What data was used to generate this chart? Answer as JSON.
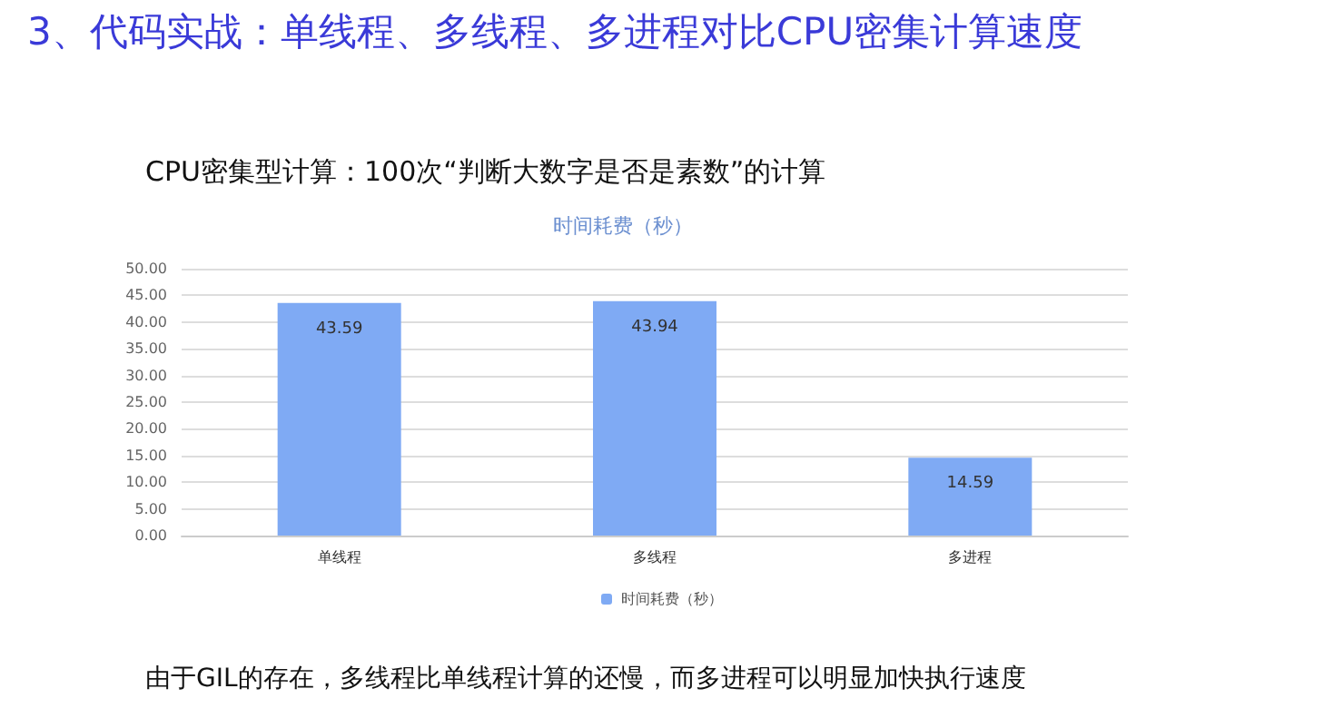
{
  "chart_data": {
    "type": "bar",
    "title": "3、代码实战：单线程、多线程、多进程对比CPU密集计算速度",
    "subtitle": "CPU密集型计算：100次“判断大数字是否是素数”的计算",
    "legend_title": null,
    "categories": [
      "单线程",
      "多线程",
      "多进程"
    ],
    "series": [
      {
        "name": "时间耗费（秒）",
        "color": "#7faaf4",
        "values": [
          43.59,
          43.94,
          14.59
        ]
      }
    ],
    "ylabel": "时间耗费（秒）",
    "ylim": [
      0,
      50
    ],
    "yticks": [
      {
        "value": 0,
        "label": "0.00"
      },
      {
        "value": 5,
        "label": "5.00"
      },
      {
        "value": 10,
        "label": "10.00"
      },
      {
        "value": 15,
        "label": "15.00"
      },
      {
        "value": 20,
        "label": "20.00"
      },
      {
        "value": 25,
        "label": "25.00"
      },
      {
        "value": 30,
        "label": "30.00"
      },
      {
        "value": 35,
        "label": "35.00"
      },
      {
        "value": 40,
        "label": "40.00"
      },
      {
        "value": 45,
        "label": "45.00"
      },
      {
        "value": 50,
        "label": "50.00"
      }
    ],
    "grid": "y",
    "legend": "bottom",
    "data_labels": true,
    "annotations": [
      "由于GIL的存在，多线程比单线程计算的还慢，而多进程可以明显加快执行速度"
    ]
  }
}
